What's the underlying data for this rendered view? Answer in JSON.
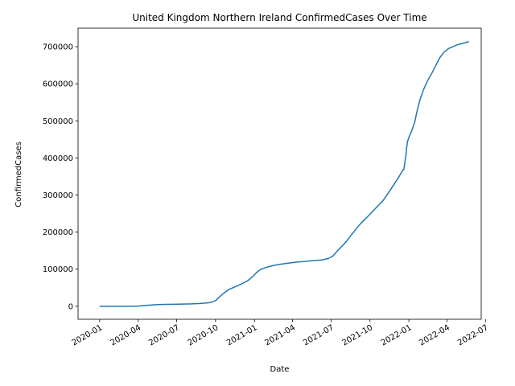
{
  "chart_data": {
    "type": "line",
    "title": "United Kingdom Northern Ireland ConfirmedCases Over Time",
    "xlabel": "Date",
    "ylabel": "ConfirmedCases",
    "grid": false,
    "legend": "none",
    "xlim": [
      "2019-11-11",
      "2022-06-21"
    ],
    "ylim": [
      -35000,
      750000
    ],
    "x_ticks": [
      "2020-01",
      "2020-04",
      "2020-07",
      "2020-10",
      "2021-01",
      "2021-04",
      "2021-07",
      "2021-10",
      "2022-01",
      "2022-04",
      "2022-07"
    ],
    "y_ticks": [
      0,
      100000,
      200000,
      300000,
      400000,
      500000,
      600000,
      700000
    ],
    "y_tick_labels": [
      "0",
      "100000",
      "200000",
      "300000",
      "400000",
      "500000",
      "600000",
      "700000"
    ],
    "series": [
      {
        "color": "#1f77b4",
        "x": [
          "2020-01-01",
          "2020-02-15",
          "2020-03-15",
          "2020-04-01",
          "2020-04-20",
          "2020-05-10",
          "2020-06-01",
          "2020-06-25",
          "2020-07-15",
          "2020-08-05",
          "2020-08-25",
          "2020-09-10",
          "2020-09-20",
          "2020-10-01",
          "2020-10-10",
          "2020-10-20",
          "2020-11-01",
          "2020-11-15",
          "2020-12-01",
          "2020-12-15",
          "2020-12-28",
          "2021-01-05",
          "2021-01-15",
          "2021-02-01",
          "2021-02-15",
          "2021-03-01",
          "2021-03-20",
          "2021-04-10",
          "2021-05-01",
          "2021-05-20",
          "2021-06-10",
          "2021-06-25",
          "2021-07-05",
          "2021-07-15",
          "2021-07-25",
          "2021-08-05",
          "2021-08-15",
          "2021-08-25",
          "2021-09-05",
          "2021-09-15",
          "2021-10-01",
          "2021-10-15",
          "2021-11-01",
          "2021-11-15",
          "2021-12-01",
          "2021-12-10",
          "2021-12-18",
          "2021-12-20",
          "2021-12-24",
          "2021-12-25",
          "2021-12-27",
          "2021-12-29",
          "2022-01-02",
          "2022-01-08",
          "2022-01-15",
          "2022-01-20",
          "2022-01-28",
          "2022-02-05",
          "2022-02-15",
          "2022-02-25",
          "2022-03-05",
          "2022-03-15",
          "2022-03-25",
          "2022-04-05",
          "2022-04-15",
          "2022-04-25",
          "2022-05-05",
          "2022-05-15",
          "2022-05-23"
        ],
        "y": [
          0,
          0,
          0,
          500,
          2500,
          4000,
          5000,
          5500,
          6000,
          6500,
          7500,
          9000,
          10500,
          15000,
          25000,
          35000,
          45000,
          52000,
          60000,
          68000,
          80000,
          90000,
          99000,
          106000,
          110000,
          113000,
          116000,
          119000,
          121000,
          123000,
          125000,
          129000,
          135000,
          148000,
          160000,
          173000,
          188000,
          202000,
          218000,
          230000,
          248000,
          265000,
          285000,
          308000,
          336000,
          352000,
          368000,
          368000,
          400000,
          405000,
          430000,
          445000,
          458000,
          474000,
          497000,
          525000,
          560000,
          585000,
          610000,
          630000,
          648000,
          670000,
          685000,
          695000,
          700000,
          705000,
          708000,
          711000,
          714000
        ]
      }
    ]
  }
}
